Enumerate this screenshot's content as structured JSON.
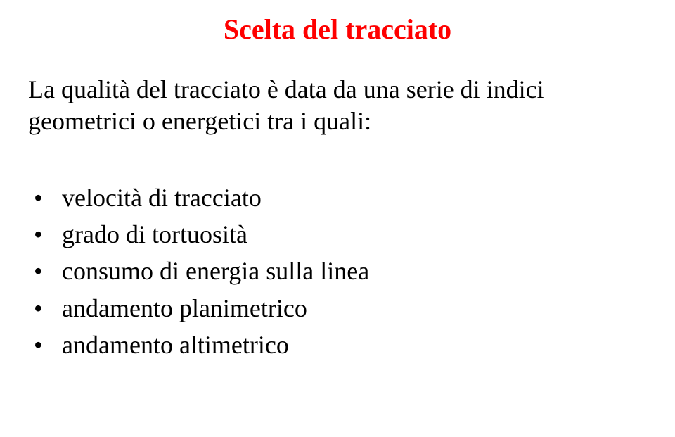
{
  "title": "Scelta del tracciato",
  "intro": "La qualità del tracciato è data da una serie di indici geometrici o energetici tra i quali:",
  "bullets": [
    "velocità di tracciato",
    "grado di tortuosità",
    "consumo di energia sulla linea",
    "andamento planimetrico",
    "andamento altimetrico"
  ],
  "colors": {
    "title": "#ff0000",
    "text": "#000000",
    "background": "#ffffff"
  }
}
